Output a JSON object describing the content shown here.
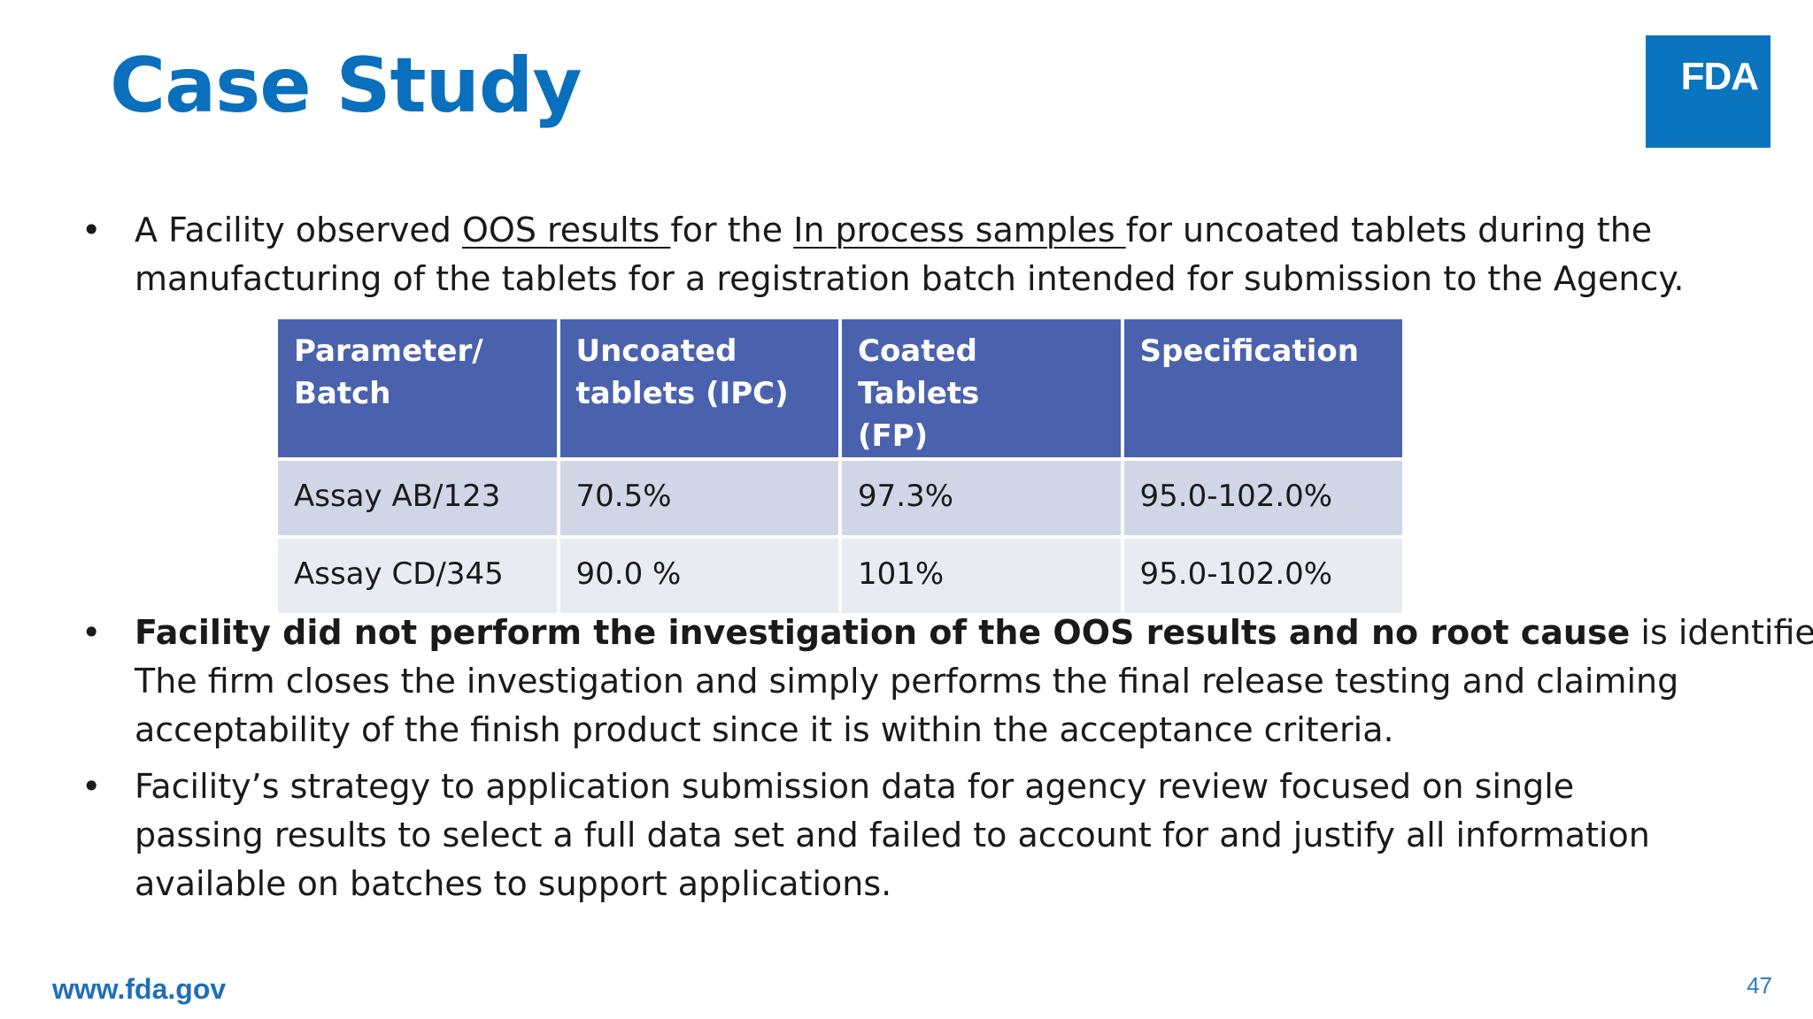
{
  "slide": {
    "title": "Case Study",
    "logo_text": "FDA",
    "brand_color": "#0b74bf"
  },
  "bullets": [
    {
      "marker": "•",
      "line1_parts": [
        "A Facility observed ",
        "OOS results ",
        "for the ",
        "In process samples ",
        "for uncoated tablets during the"
      ],
      "line2": "manufacturing of the tablets for a registration batch intended for submission to the Agency."
    },
    {
      "marker": "•",
      "line1_bold": "Facility did not perform the investigation of the OOS results and no root cause",
      "line1_rest": " is identified.",
      "line2": "The firm closes the investigation and simply performs the final release testing and claiming",
      "line3": "acceptability of the finish product since it is within the acceptance criteria."
    },
    {
      "marker": "•",
      "line1": "Facility’s strategy to application submission data for agency review  focused on single",
      "line2": "passing results to select a full data set and failed to account for and justify all information",
      "line3": "available on batches to support applications."
    }
  ],
  "table": {
    "headers": [
      [
        "Parameter/",
        "Batch"
      ],
      [
        "Uncoated",
        "tablets (IPC)"
      ],
      [
        "Coated Tablets",
        "(FP)"
      ],
      [
        "Specification",
        ""
      ]
    ],
    "rows": [
      [
        "Assay AB/123",
        "70.5%",
        "97.3%",
        "95.0-102.0%"
      ],
      [
        "Assay CD/345",
        "90.0 %",
        "101%",
        "95.0-102.0%"
      ]
    ],
    "header_color": "#4a62ad",
    "row_colors": [
      "#d0d6e6",
      "#e9ebf3"
    ]
  },
  "footer": {
    "url": "www.fda.gov",
    "page_number": "47"
  }
}
